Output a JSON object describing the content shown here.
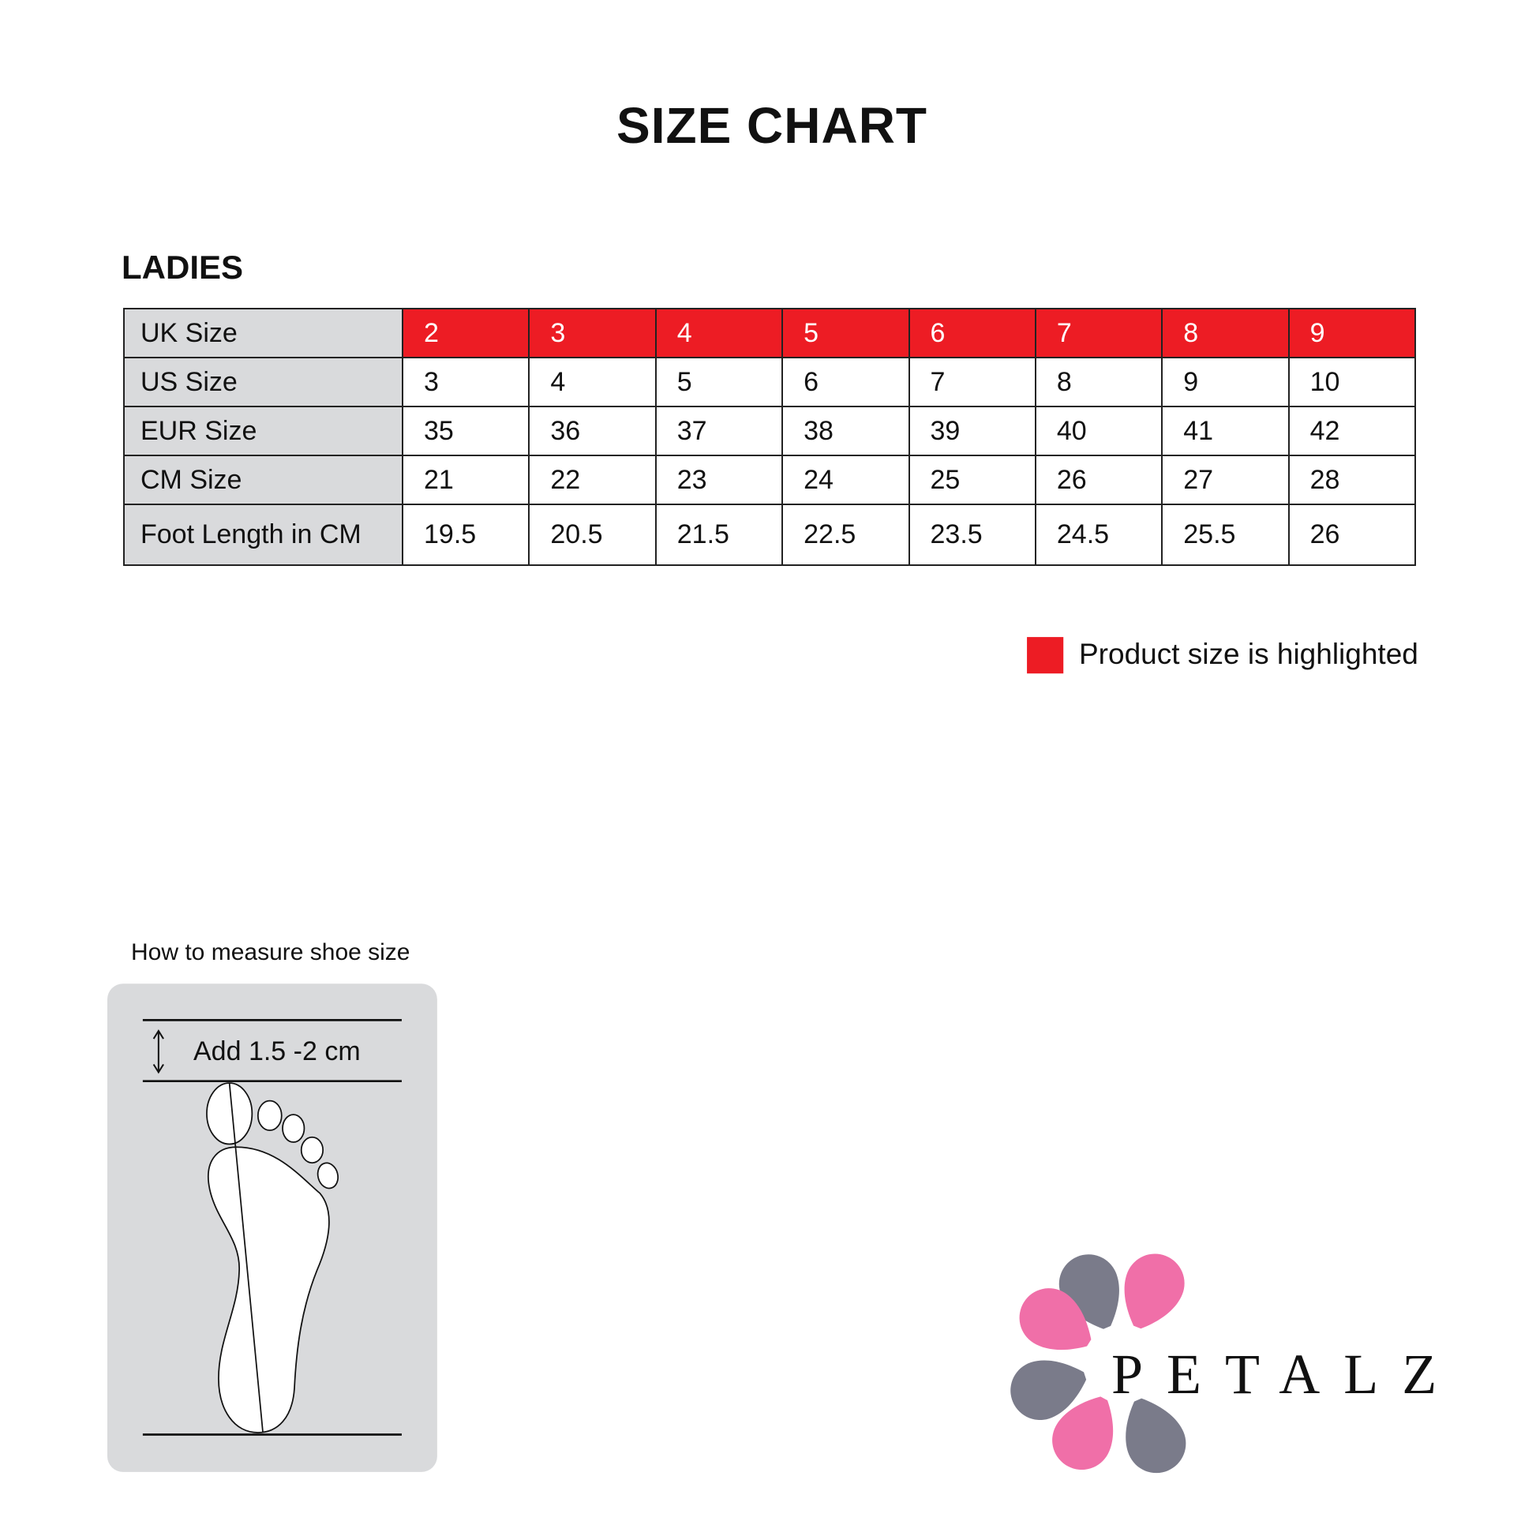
{
  "title": "SIZE CHART",
  "section": "LADIES",
  "table": {
    "rows": [
      {
        "label": "UK Size",
        "values": [
          "2",
          "3",
          "4",
          "5",
          "6",
          "7",
          "8",
          "9"
        ],
        "highlighted": true
      },
      {
        "label": "US Size",
        "values": [
          "3",
          "4",
          "5",
          "6",
          "7",
          "8",
          "9",
          "10"
        ]
      },
      {
        "label": "EUR Size",
        "values": [
          "35",
          "36",
          "37",
          "38",
          "39",
          "40",
          "41",
          "42"
        ]
      },
      {
        "label": "CM Size",
        "values": [
          "21",
          "22",
          "23",
          "24",
          "25",
          "26",
          "27",
          "28"
        ]
      },
      {
        "label": "Foot Length in CM",
        "values": [
          "19.5",
          "20.5",
          "21.5",
          "22.5",
          "23.5",
          "24.5",
          "25.5",
          "26"
        ]
      }
    ]
  },
  "legend": {
    "label": "Product size is highlighted",
    "color": "#ed1c24"
  },
  "measure": {
    "title": "How to measure shoe size",
    "add_label": "Add 1.5 -2 cm",
    "icon": "double-arrow-vertical-icon"
  },
  "logo": {
    "text": "PETALZ",
    "pink": "#f06fa8",
    "grey": "#7a7b8a"
  }
}
